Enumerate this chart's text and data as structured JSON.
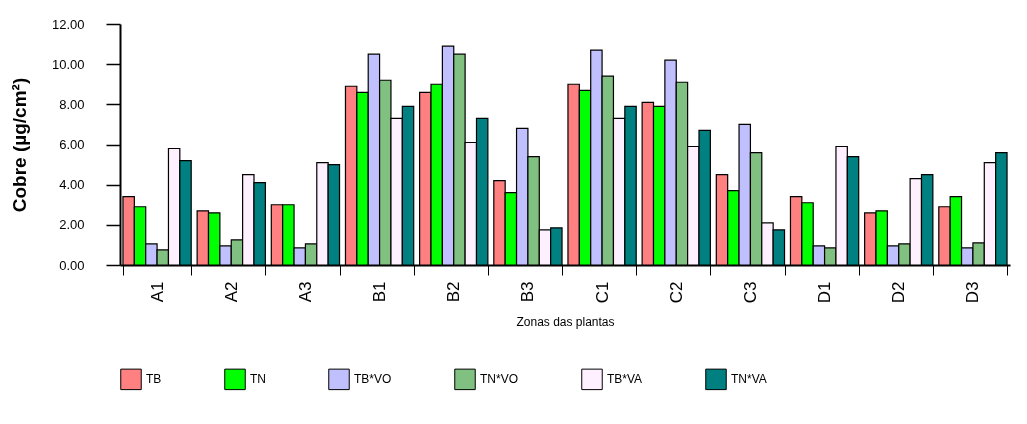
{
  "chart_data": {
    "type": "bar",
    "xlabel": "Zonas das plantas",
    "ylabel": "Cobre (µg/cm²)",
    "categories": [
      "A1",
      "A2",
      "A3",
      "B1",
      "B2",
      "B3",
      "C1",
      "C2",
      "C3",
      "D1",
      "D2",
      "D3"
    ],
    "series": [
      {
        "name": "TB",
        "color": "#ff8080",
        "values": [
          3.4,
          2.7,
          3.0,
          8.9,
          8.6,
          4.2,
          9.0,
          8.1,
          4.5,
          3.4,
          2.6,
          2.9
        ]
      },
      {
        "name": "TN",
        "color": "#00ff00",
        "values": [
          2.9,
          2.6,
          3.0,
          8.6,
          9.0,
          3.6,
          8.7,
          7.9,
          3.7,
          3.1,
          2.7,
          3.4
        ]
      },
      {
        "name": "TB*VO",
        "color": "#c0c0ff",
        "values": [
          1.05,
          0.95,
          0.85,
          10.5,
          10.9,
          6.8,
          10.7,
          10.2,
          7.0,
          0.95,
          0.95,
          0.85
        ]
      },
      {
        "name": "TN*VO",
        "color": "#80c080",
        "values": [
          0.75,
          1.25,
          1.05,
          9.2,
          10.5,
          5.4,
          9.4,
          9.1,
          5.6,
          0.85,
          1.05,
          1.1
        ]
      },
      {
        "name": "TB*VA",
        "color": "#fff0ff",
        "values": [
          5.8,
          4.5,
          5.1,
          7.3,
          6.1,
          1.75,
          7.3,
          5.9,
          2.1,
          5.9,
          4.3,
          5.1
        ]
      },
      {
        "name": "TN*VA",
        "color": "#008080",
        "values": [
          5.2,
          4.1,
          5.0,
          7.9,
          7.3,
          1.85,
          7.9,
          6.7,
          1.75,
          5.4,
          4.5,
          5.6
        ]
      }
    ],
    "ylim": [
      0,
      12
    ],
    "yticks": [
      {
        "value": 0,
        "label": "0.00"
      },
      {
        "value": 2,
        "label": "2.00"
      },
      {
        "value": 4,
        "label": "4.00"
      },
      {
        "value": 6,
        "label": "6.00"
      },
      {
        "value": 8,
        "label": "8.00"
      },
      {
        "value": 10,
        "label": "10.00"
      },
      {
        "value": 12,
        "label": "12.00"
      }
    ],
    "grid": false,
    "legend": "bottom"
  }
}
